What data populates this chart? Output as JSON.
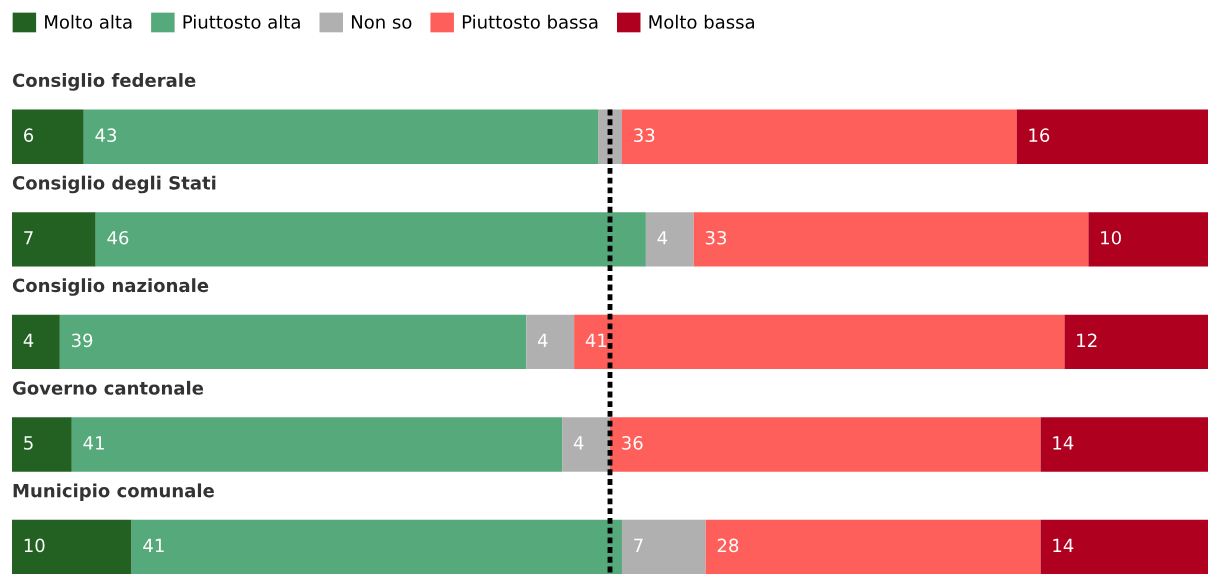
{
  "chart_data": {
    "type": "bar",
    "orientation": "horizontal",
    "stacked": true,
    "categories": [
      "Consiglio federale",
      "Consiglio degli Stati",
      "Consiglio nazionale",
      "Governo cantonale",
      "Municipio comunale"
    ],
    "series": [
      {
        "name": "Molto alta",
        "color": "#236123",
        "values": [
          6,
          7,
          4,
          5,
          10
        ]
      },
      {
        "name": "Piuttosto alta",
        "color": "#55a97a",
        "values": [
          43,
          46,
          39,
          41,
          41
        ]
      },
      {
        "name": "Non so",
        "color": "#b0b0b0",
        "values": [
          2,
          4,
          4,
          4,
          7
        ],
        "value_labels": [
          null,
          "4",
          "4",
          "4",
          "7"
        ]
      },
      {
        "name": "Piuttosto bassa",
        "color": "#ff5f5a",
        "values": [
          33,
          33,
          41,
          36,
          28
        ]
      },
      {
        "name": "Molto bassa",
        "color": "#b00020",
        "values": [
          16,
          10,
          12,
          14,
          14
        ]
      }
    ],
    "xlim": [
      0,
      100
    ],
    "legend": "top left",
    "data_labels": true,
    "ref_lines": [
      {
        "axis": "x",
        "value": 50,
        "color": "#000000",
        "line_style": "dashed"
      }
    ]
  }
}
